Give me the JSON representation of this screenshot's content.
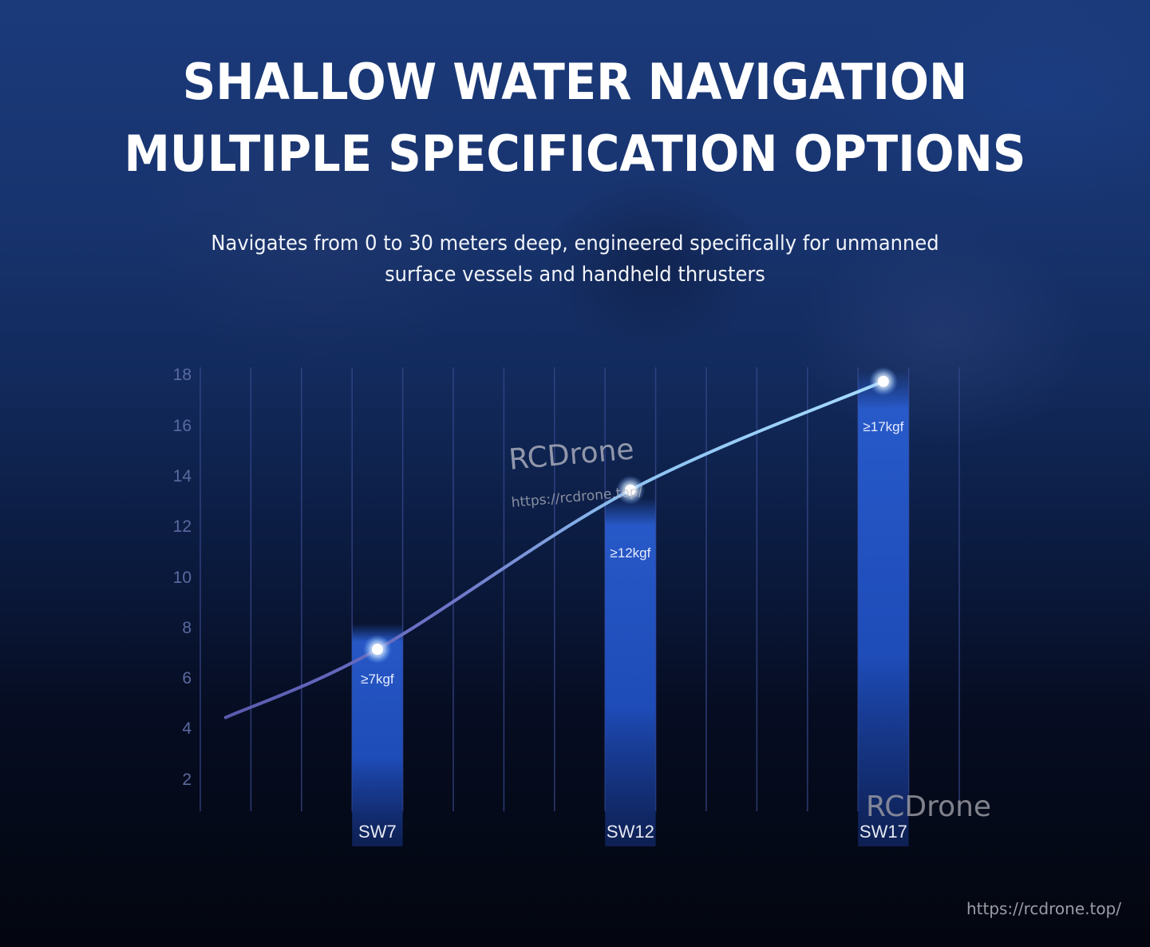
{
  "header": {
    "title_line1": "SHALLOW WATER NAVIGATION",
    "title_line2": "MULTIPLE SPECIFICATION OPTIONS",
    "subtitle_line1": "Navigates from 0 to 30 meters deep, engineered specifically for unmanned",
    "subtitle_line2": "surface vessels and handheld thrusters"
  },
  "watermarks": {
    "center_brand": "RCDrone",
    "center_url": "https://rcdrone.top/",
    "bottom_brand": "RCDrone",
    "footer_url": "https://rcdrone.top/"
  },
  "colors": {
    "bar": "#2a5fd6",
    "line_start": "#5a5ab0",
    "line_end": "#9fd6ff",
    "grid": "#3a4a90",
    "point": "#ffffff"
  },
  "chart_data": {
    "type": "bar",
    "title": "",
    "xlabel": "",
    "ylabel": "",
    "categories": [
      "SW7",
      "SW12",
      "SW17"
    ],
    "values": [
      7,
      12,
      17
    ],
    "bar_labels": [
      "≥7kgf",
      "≥12kgf",
      "≥17kgf"
    ],
    "unit": "kgf",
    "y_ticks": [
      2,
      4,
      6,
      8,
      10,
      12,
      14,
      16,
      18
    ],
    "ylim": [
      0,
      18
    ],
    "grid": "vertical lines",
    "legend": "none",
    "overlay_line": {
      "type": "smooth line",
      "points": [
        [
          0.5,
          4.5
        ],
        [
          3.5,
          7.2
        ],
        [
          8.5,
          13.5
        ],
        [
          13.5,
          17.8
        ]
      ]
    }
  }
}
